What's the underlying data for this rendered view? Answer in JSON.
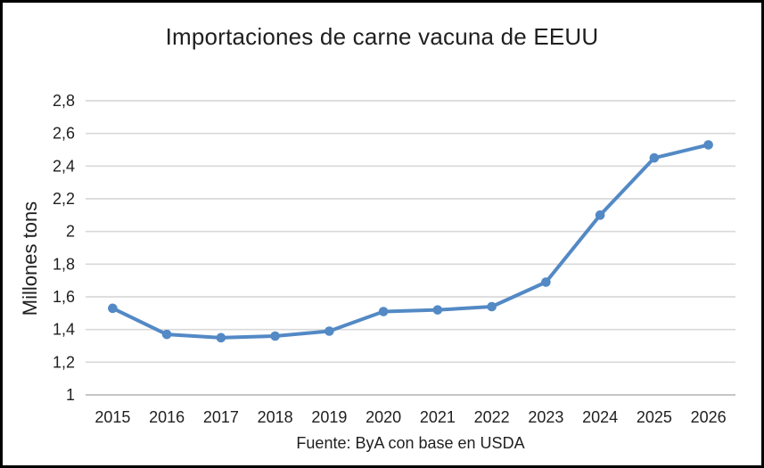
{
  "chart_data": {
    "type": "line",
    "title": "Importaciones de carne vacuna de EEUU",
    "ylabel": "Millones tons",
    "xlabel": "",
    "source_note": "Fuente: ByA con base en USDA",
    "categories": [
      "2015",
      "2016",
      "2017",
      "2018",
      "2019",
      "2020",
      "2021",
      "2022",
      "2023",
      "2024",
      "2025",
      "2026"
    ],
    "values": [
      1.53,
      1.37,
      1.35,
      1.36,
      1.39,
      1.51,
      1.52,
      1.54,
      1.69,
      2.1,
      2.45,
      2.53
    ],
    "ylim": [
      1.0,
      2.8
    ],
    "ytick_step": 0.2,
    "ytick_labels": [
      "1",
      "1,2",
      "1,4",
      "1,6",
      "1,8",
      "2",
      "2,2",
      "2,4",
      "2,6",
      "2,8"
    ],
    "decimal_separator": ",",
    "grid": true,
    "legend": "none",
    "marker": "circle",
    "colors": {
      "line": "#5389C5",
      "marker": "#5389C5",
      "gridline": "#D9D9D9",
      "axis_line": "#C6C6C6",
      "text": "#1F1F1F",
      "border": "#000000",
      "background": "#FFFFFF"
    }
  }
}
